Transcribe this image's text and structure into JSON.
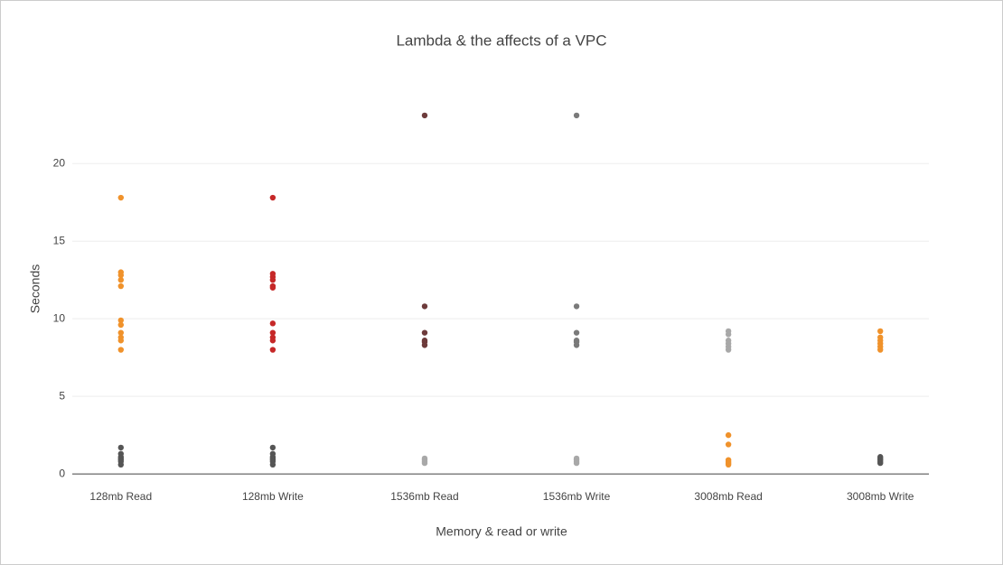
{
  "chart_data": {
    "type": "strip",
    "title": "Lambda & the affects of a VPC",
    "x_label": "Memory & read or write",
    "y_label": "Seconds",
    "categories": [
      "128mb Read",
      "128mb Write",
      "1536mb Read",
      "1536mb Write",
      "3008mb Read",
      "3008mb Write"
    ],
    "ylim": [
      -0.4,
      24.2
    ],
    "yticks": [
      0,
      5,
      10,
      15,
      20
    ],
    "grid": true,
    "series": [
      {
        "color": "#f0922b",
        "values": [
          [
            17.8,
            13,
            12.8,
            12.5,
            12.1,
            9.9,
            9.6,
            9.1,
            8.8,
            8.6,
            8
          ],
          [],
          [],
          [],
          [
            2.5,
            1.9,
            0.9,
            0.8,
            0.7,
            0.6
          ],
          [
            9.2,
            8.8,
            8.6,
            8.4,
            8.2,
            8
          ]
        ]
      },
      {
        "color": "#c62828",
        "values": [
          [],
          [
            17.8,
            12.9,
            12.7,
            12.5,
            12.1,
            12,
            9.7,
            9.1,
            8.8,
            8.6,
            8
          ],
          [],
          [],
          [],
          []
        ]
      },
      {
        "color": "#555555",
        "values": [
          [
            1.7,
            1.3,
            1.1,
            1,
            0.9,
            0.8,
            0.6
          ],
          [
            1.7,
            1.3,
            1.1,
            1,
            0.9,
            0.8,
            0.6
          ],
          [],
          [],
          [],
          [
            1.1,
            1,
            0.9,
            0.8,
            0.7
          ]
        ]
      },
      {
        "color": "#6d3b3b",
        "values": [
          [],
          [],
          [
            23.1,
            10.8,
            9.1,
            8.6,
            8.5,
            8.3
          ],
          [],
          [],
          []
        ]
      },
      {
        "color": "#7a7a7a",
        "values": [
          [],
          [],
          [],
          [
            23.1,
            10.8,
            9.1,
            8.6,
            8.5,
            8.3
          ],
          [],
          []
        ]
      },
      {
        "color": "#a8a8a8",
        "values": [
          [],
          [],
          [
            1,
            0.9,
            0.8,
            0.7
          ],
          [
            1,
            0.9,
            0.8,
            0.7
          ],
          [
            9.2,
            9,
            8.6,
            8.4,
            8.2,
            8
          ],
          []
        ]
      }
    ]
  }
}
